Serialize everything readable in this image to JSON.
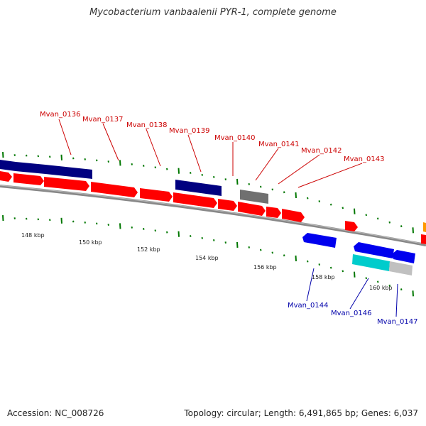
{
  "title": "Mycobacterium vanbaalenii PYR-1, complete genome",
  "accession": "Accession: NC_008726",
  "summary": "Topology: circular; Length: 6,491,865 bp; Genes: 6,037",
  "colors": {
    "forward_gene": "#ff0000",
    "reverse_gene": "#0000ee",
    "other_forward": "#000080",
    "cds_gray": "#707070",
    "rna_cyan": "#00cccc",
    "light_gray": "#c0c0c0",
    "orange": "#ff9900",
    "tick_green": "#007700",
    "backbone": "#888888",
    "top_label": "#cc0000",
    "bottom_label": "#0000aa"
  },
  "kbp_labels": [
    "148 kbp",
    "150 kbp",
    "152 kbp",
    "154 kbp",
    "156 kbp",
    "158 kbp",
    "160 kbp"
  ],
  "top_labels": [
    "Mvan_0136",
    "Mvan_0137",
    "Mvan_0138",
    "Mvan_0139",
    "Mvan_0140",
    "Mvan_0141",
    "Mvan_0142",
    "Mvan_0143"
  ],
  "bottom_labels": [
    "Mvan_0144",
    "Mvan_0146",
    "Mvan_0147"
  ]
}
